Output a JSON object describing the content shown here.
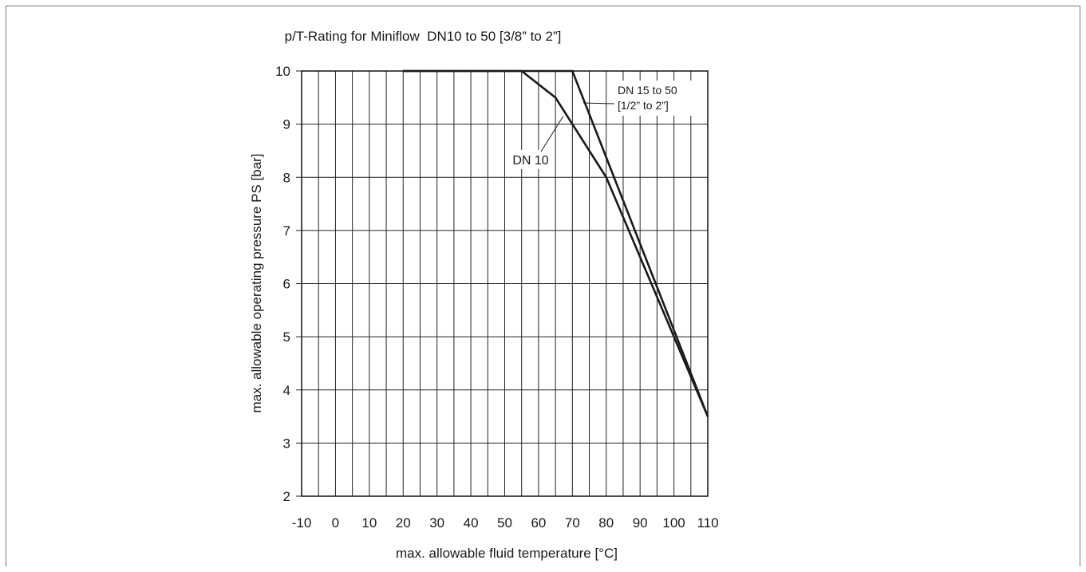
{
  "chart_data": {
    "type": "line",
    "title": "p/T-Rating for Miniflow  DN10 to 50 [3/8” to 2”]",
    "xlabel": "max. allowable fluid temperature [°C]",
    "ylabel": "max. allowable operating pressure PS [bar]",
    "xlim": [
      -10,
      110
    ],
    "ylim": [
      2,
      10
    ],
    "x_ticks": [
      -10,
      0,
      10,
      20,
      30,
      40,
      50,
      60,
      70,
      80,
      90,
      100,
      110
    ],
    "y_ticks": [
      2,
      3,
      4,
      5,
      6,
      7,
      8,
      9,
      10
    ],
    "grid": true,
    "series": [
      {
        "name": "DN 10",
        "x": [
          20,
          55,
          65,
          80,
          110
        ],
        "y": [
          10,
          10,
          9.5,
          8,
          3.5
        ]
      },
      {
        "name": "DN 15 to 50 [1/2” to 2”]",
        "x": [
          20,
          70,
          110
        ],
        "y": [
          10,
          10,
          3.5
        ]
      }
    ],
    "annotations": [
      {
        "text": "DN 10"
      },
      {
        "text": "DN 15 to 50"
      },
      {
        "text": "[1/2” to 2”]"
      }
    ]
  }
}
